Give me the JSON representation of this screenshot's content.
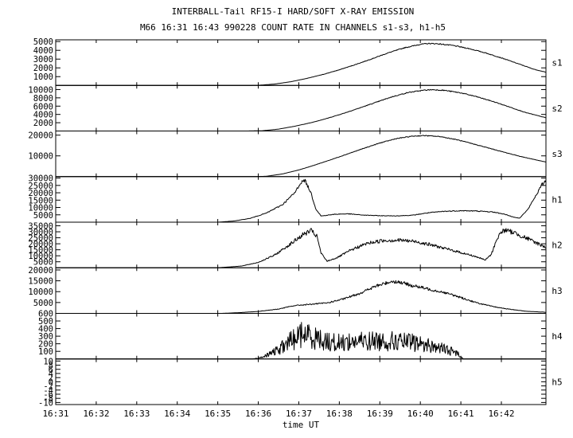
{
  "chart_data": {
    "type": "line",
    "title": "INTERBALL-Tail RF15-I HARD/SOFT X-RAY EMISSION",
    "subtitle": "M66  16:31 16:43 990228  COUNT RATE IN CHANNELS s1-s3, h1-h5",
    "xlabel": "time UT",
    "x_ticks": [
      "16:31",
      "16:32",
      "16:33",
      "16:34",
      "16:35",
      "16:36",
      "16:37",
      "16:38",
      "16:39",
      "16:40",
      "16:41",
      "16:42"
    ],
    "xlim": [
      0,
      12.1
    ],
    "panels": [
      {
        "name": "s1",
        "ylim": [
          0,
          5200
        ],
        "yticks": [
          1000,
          2000,
          3000,
          4000,
          5000
        ],
        "noise": 0.006,
        "points": [
          [
            0,
            0
          ],
          [
            4.6,
            0
          ],
          [
            5.0,
            15
          ],
          [
            5.4,
            150
          ],
          [
            5.8,
            420
          ],
          [
            6.2,
            800
          ],
          [
            6.6,
            1250
          ],
          [
            7.0,
            1780
          ],
          [
            7.4,
            2380
          ],
          [
            7.8,
            3030
          ],
          [
            8.2,
            3700
          ],
          [
            8.6,
            4280
          ],
          [
            9.0,
            4690
          ],
          [
            9.2,
            4780
          ],
          [
            9.4,
            4760
          ],
          [
            9.8,
            4560
          ],
          [
            10.2,
            4200
          ],
          [
            10.6,
            3720
          ],
          [
            11.0,
            3140
          ],
          [
            11.4,
            2500
          ],
          [
            11.8,
            1850
          ],
          [
            12.1,
            1500
          ]
        ]
      },
      {
        "name": "s2",
        "ylim": [
          0,
          11000
        ],
        "yticks": [
          2000,
          4000,
          6000,
          8000,
          10000
        ],
        "noise": 0.006,
        "points": [
          [
            0,
            0
          ],
          [
            4.7,
            0
          ],
          [
            5.1,
            60
          ],
          [
            5.5,
            450
          ],
          [
            5.9,
            1150
          ],
          [
            6.3,
            2000
          ],
          [
            6.7,
            3050
          ],
          [
            7.1,
            4250
          ],
          [
            7.5,
            5550
          ],
          [
            7.9,
            6900
          ],
          [
            8.3,
            8250
          ],
          [
            8.7,
            9300
          ],
          [
            9.1,
            9850
          ],
          [
            9.3,
            9980
          ],
          [
            9.6,
            9800
          ],
          [
            10.0,
            9200
          ],
          [
            10.4,
            8250
          ],
          [
            10.8,
            7100
          ],
          [
            11.2,
            5800
          ],
          [
            11.6,
            4450
          ],
          [
            12.1,
            3200
          ]
        ]
      },
      {
        "name": "s3",
        "ylim": [
          0,
          22000
        ],
        "yticks": [
          10000,
          20000
        ],
        "noise": 0.005,
        "points": [
          [
            0,
            0
          ],
          [
            4.9,
            0
          ],
          [
            5.2,
            150
          ],
          [
            5.6,
            1300
          ],
          [
            6.0,
            3200
          ],
          [
            6.4,
            5600
          ],
          [
            6.8,
            8200
          ],
          [
            7.2,
            10900
          ],
          [
            7.6,
            13600
          ],
          [
            8.0,
            16200
          ],
          [
            8.4,
            18300
          ],
          [
            8.8,
            19500
          ],
          [
            9.1,
            19800
          ],
          [
            9.5,
            19300
          ],
          [
            9.9,
            17800
          ],
          [
            10.3,
            15800
          ],
          [
            10.7,
            13700
          ],
          [
            11.1,
            11600
          ],
          [
            11.5,
            9600
          ],
          [
            12.1,
            7000
          ]
        ]
      },
      {
        "name": "h1",
        "ylim": [
          0,
          31000
        ],
        "yticks": [
          5000,
          10000,
          15000,
          20000,
          25000,
          30000
        ],
        "noise": 0.02,
        "points": [
          [
            0,
            0
          ],
          [
            4.0,
            0
          ],
          [
            4.4,
            800
          ],
          [
            4.8,
            2600
          ],
          [
            5.2,
            6200
          ],
          [
            5.6,
            12000
          ],
          [
            5.9,
            20000
          ],
          [
            6.05,
            27000
          ],
          [
            6.15,
            28500
          ],
          [
            6.3,
            20000
          ],
          [
            6.42,
            9000
          ],
          [
            6.55,
            4200
          ],
          [
            6.9,
            5400
          ],
          [
            7.2,
            5700
          ],
          [
            7.6,
            4800
          ],
          [
            8.0,
            4400
          ],
          [
            8.4,
            4300
          ],
          [
            8.8,
            4700
          ],
          [
            9.2,
            6400
          ],
          [
            9.6,
            7400
          ],
          [
            10.0,
            7800
          ],
          [
            10.4,
            7600
          ],
          [
            10.8,
            6900
          ],
          [
            11.1,
            5300
          ],
          [
            11.3,
            3400
          ],
          [
            11.45,
            2800
          ],
          [
            11.65,
            8500
          ],
          [
            11.85,
            18000
          ],
          [
            12.0,
            25500
          ],
          [
            12.1,
            28500
          ]
        ]
      },
      {
        "name": "h2",
        "ylim": [
          0,
          38000
        ],
        "yticks": [
          5000,
          10000,
          15000,
          20000,
          25000,
          30000,
          35000
        ],
        "noise": 0.035,
        "points": [
          [
            0,
            0
          ],
          [
            4.0,
            0
          ],
          [
            4.6,
            1500
          ],
          [
            5.0,
            4500
          ],
          [
            5.4,
            10500
          ],
          [
            5.8,
            20000
          ],
          [
            6.1,
            27500
          ],
          [
            6.3,
            31000
          ],
          [
            6.45,
            26000
          ],
          [
            6.55,
            12000
          ],
          [
            6.7,
            5500
          ],
          [
            6.95,
            8500
          ],
          [
            7.3,
            15000
          ],
          [
            7.7,
            20500
          ],
          [
            8.1,
            22800
          ],
          [
            8.5,
            23000
          ],
          [
            8.9,
            21800
          ],
          [
            9.3,
            18800
          ],
          [
            9.7,
            15300
          ],
          [
            10.1,
            11800
          ],
          [
            10.4,
            9000
          ],
          [
            10.6,
            6500
          ],
          [
            10.75,
            11000
          ],
          [
            10.9,
            25000
          ],
          [
            11.05,
            31500
          ],
          [
            11.3,
            29500
          ],
          [
            11.6,
            25000
          ],
          [
            12.1,
            17000
          ]
        ]
      },
      {
        "name": "h3",
        "ylim": [
          0,
          21000
        ],
        "yticks": [
          5000,
          10000,
          15000,
          20000
        ],
        "noise": 0.03,
        "points": [
          [
            0,
            0
          ],
          [
            4.1,
            0
          ],
          [
            4.5,
            300
          ],
          [
            5.0,
            900
          ],
          [
            5.5,
            2000
          ],
          [
            5.9,
            3600
          ],
          [
            6.3,
            4200
          ],
          [
            6.7,
            4800
          ],
          [
            7.1,
            6600
          ],
          [
            7.5,
            9200
          ],
          [
            7.9,
            12500
          ],
          [
            8.3,
            14800
          ],
          [
            8.5,
            14300
          ],
          [
            8.8,
            12800
          ],
          [
            9.2,
            11200
          ],
          [
            9.6,
            9600
          ],
          [
            10.0,
            7300
          ],
          [
            10.4,
            4800
          ],
          [
            10.8,
            3100
          ],
          [
            11.2,
            1900
          ],
          [
            11.6,
            1000
          ],
          [
            12.1,
            500
          ]
        ]
      },
      {
        "name": "h4",
        "ylim": [
          0,
          600
        ],
        "yticks": [
          100,
          200,
          300,
          400,
          500,
          600
        ],
        "noise": 0.28,
        "points": [
          [
            0,
            0
          ],
          [
            4.85,
            0
          ],
          [
            5.1,
            20
          ],
          [
            5.5,
            120
          ],
          [
            5.8,
            240
          ],
          [
            6.1,
            330
          ],
          [
            6.3,
            300
          ],
          [
            6.6,
            245
          ],
          [
            6.9,
            210
          ],
          [
            7.2,
            225
          ],
          [
            7.5,
            230
          ],
          [
            7.8,
            235
          ],
          [
            8.1,
            240
          ],
          [
            8.4,
            230
          ],
          [
            8.8,
            215
          ],
          [
            9.2,
            180
          ],
          [
            9.6,
            130
          ],
          [
            9.9,
            80
          ],
          [
            10.0,
            40
          ],
          [
            10.05,
            0
          ],
          [
            12.1,
            0
          ]
        ]
      },
      {
        "name": "h5",
        "ylim": [
          -11,
          11
        ],
        "yticks": [
          -10,
          -8,
          -6,
          -4,
          -2,
          0,
          2,
          4,
          6,
          8,
          10
        ],
        "noise": 0,
        "points": []
      }
    ]
  }
}
